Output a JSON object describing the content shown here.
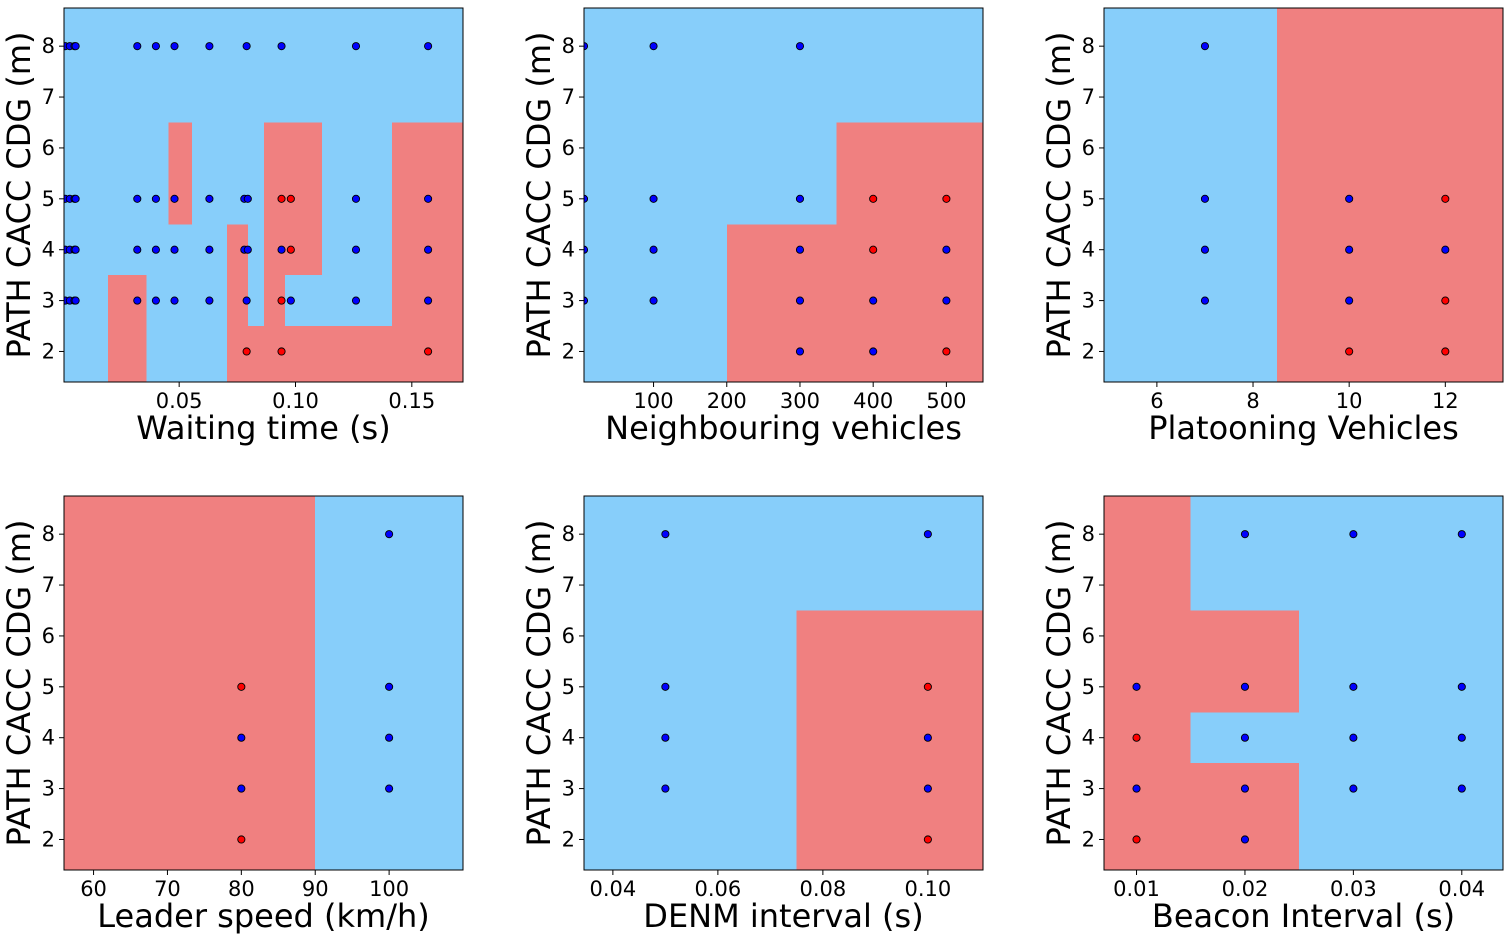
{
  "colors": {
    "blue_region": "#87CEFA",
    "red_region": "#F08080",
    "blue_point": "#0000FF",
    "red_point": "#FF0000",
    "point_edge": "#000000"
  },
  "chart_data": [
    {
      "type": "decision-region-scatter",
      "xlabel": "Waiting time (s)",
      "ylabel": "PATH CACC CDG (m)",
      "xlim": [
        0.0005,
        0.172
      ],
      "ylim": [
        1.4,
        8.75
      ],
      "xticks": [
        0.05,
        0.1,
        0.15
      ],
      "xtick_labels": [
        "0.05",
        "0.10",
        "0.15"
      ],
      "yticks": [
        2,
        3,
        4,
        5,
        6,
        7,
        8
      ],
      "ytick_labels": [
        "2",
        "3",
        "4",
        "5",
        "6",
        "7",
        "8"
      ],
      "background_class": "blue",
      "regions": [
        {
          "class": "red",
          "x": [
            0.0195,
            0.036
          ],
          "y": [
            1.4,
            3.5
          ]
        },
        {
          "class": "red",
          "x": [
            0.0455,
            0.0555
          ],
          "y": [
            4.5,
            6.5
          ]
        },
        {
          "class": "red",
          "x": [
            0.0705,
            0.0795
          ],
          "y": [
            1.4,
            4.5
          ]
        },
        {
          "class": "red",
          "x": [
            0.0795,
            0.0865
          ],
          "y": [
            1.4,
            2.5
          ]
        },
        {
          "class": "red",
          "x": [
            0.0865,
            0.0955
          ],
          "y": [
            1.4,
            6.5
          ]
        },
        {
          "class": "red",
          "x": [
            0.0955,
            0.1115
          ],
          "y": [
            3.5,
            6.5
          ]
        },
        {
          "class": "red",
          "x": [
            0.0955,
            0.172
          ],
          "y": [
            1.4,
            2.5
          ]
        },
        {
          "class": "red",
          "x": [
            0.1415,
            0.172
          ],
          "y": [
            2.5,
            6.5
          ]
        }
      ],
      "points": [
        {
          "x": 0.001,
          "y": 8,
          "class": "blue"
        },
        {
          "x": 0.003,
          "y": 8,
          "class": "blue"
        },
        {
          "x": 0.005,
          "y": 8,
          "class": "blue"
        },
        {
          "x": 0.0055,
          "y": 8,
          "class": "blue"
        },
        {
          "x": 0.032,
          "y": 8,
          "class": "blue"
        },
        {
          "x": 0.04,
          "y": 8,
          "class": "blue"
        },
        {
          "x": 0.048,
          "y": 8,
          "class": "blue"
        },
        {
          "x": 0.063,
          "y": 8,
          "class": "blue"
        },
        {
          "x": 0.079,
          "y": 8,
          "class": "blue"
        },
        {
          "x": 0.094,
          "y": 8,
          "class": "blue"
        },
        {
          "x": 0.126,
          "y": 8,
          "class": "blue"
        },
        {
          "x": 0.157,
          "y": 8,
          "class": "blue"
        },
        {
          "x": 0.001,
          "y": 5,
          "class": "blue"
        },
        {
          "x": 0.003,
          "y": 5,
          "class": "blue"
        },
        {
          "x": 0.005,
          "y": 5,
          "class": "blue"
        },
        {
          "x": 0.0055,
          "y": 5,
          "class": "blue"
        },
        {
          "x": 0.032,
          "y": 5,
          "class": "blue"
        },
        {
          "x": 0.04,
          "y": 5,
          "class": "blue"
        },
        {
          "x": 0.048,
          "y": 5,
          "class": "blue"
        },
        {
          "x": 0.063,
          "y": 5,
          "class": "blue"
        },
        {
          "x": 0.078,
          "y": 5,
          "class": "blue"
        },
        {
          "x": 0.0795,
          "y": 5,
          "class": "blue"
        },
        {
          "x": 0.094,
          "y": 5,
          "class": "red"
        },
        {
          "x": 0.098,
          "y": 5,
          "class": "red"
        },
        {
          "x": 0.126,
          "y": 5,
          "class": "blue"
        },
        {
          "x": 0.157,
          "y": 5,
          "class": "blue"
        },
        {
          "x": 0.001,
          "y": 4,
          "class": "blue"
        },
        {
          "x": 0.003,
          "y": 4,
          "class": "blue"
        },
        {
          "x": 0.005,
          "y": 4,
          "class": "blue"
        },
        {
          "x": 0.0055,
          "y": 4,
          "class": "blue"
        },
        {
          "x": 0.032,
          "y": 4,
          "class": "blue"
        },
        {
          "x": 0.04,
          "y": 4,
          "class": "blue"
        },
        {
          "x": 0.048,
          "y": 4,
          "class": "blue"
        },
        {
          "x": 0.063,
          "y": 4,
          "class": "blue"
        },
        {
          "x": 0.078,
          "y": 4,
          "class": "blue"
        },
        {
          "x": 0.0795,
          "y": 4,
          "class": "blue"
        },
        {
          "x": 0.094,
          "y": 4,
          "class": "blue"
        },
        {
          "x": 0.098,
          "y": 4,
          "class": "red"
        },
        {
          "x": 0.126,
          "y": 4,
          "class": "blue"
        },
        {
          "x": 0.157,
          "y": 4,
          "class": "blue"
        },
        {
          "x": 0.001,
          "y": 3,
          "class": "blue"
        },
        {
          "x": 0.003,
          "y": 3,
          "class": "blue"
        },
        {
          "x": 0.005,
          "y": 3,
          "class": "blue"
        },
        {
          "x": 0.0055,
          "y": 3,
          "class": "blue"
        },
        {
          "x": 0.032,
          "y": 3,
          "class": "blue"
        },
        {
          "x": 0.04,
          "y": 3,
          "class": "blue"
        },
        {
          "x": 0.048,
          "y": 3,
          "class": "blue"
        },
        {
          "x": 0.063,
          "y": 3,
          "class": "blue"
        },
        {
          "x": 0.079,
          "y": 3,
          "class": "blue"
        },
        {
          "x": 0.094,
          "y": 3,
          "class": "red"
        },
        {
          "x": 0.098,
          "y": 3,
          "class": "blue"
        },
        {
          "x": 0.126,
          "y": 3,
          "class": "blue"
        },
        {
          "x": 0.157,
          "y": 3,
          "class": "blue"
        },
        {
          "x": 0.079,
          "y": 2,
          "class": "red"
        },
        {
          "x": 0.094,
          "y": 2,
          "class": "red"
        },
        {
          "x": 0.157,
          "y": 2,
          "class": "red"
        }
      ]
    },
    {
      "type": "decision-region-scatter",
      "xlabel": "Neighbouring vehicles",
      "ylabel": "PATH CACC CDG (m)",
      "xlim": [
        5,
        550
      ],
      "ylim": [
        1.4,
        8.75
      ],
      "xticks": [
        100,
        200,
        300,
        400,
        500
      ],
      "xtick_labels": [
        "100",
        "200",
        "300",
        "400",
        "500"
      ],
      "yticks": [
        2,
        3,
        4,
        5,
        6,
        7,
        8
      ],
      "ytick_labels": [
        "2",
        "3",
        "4",
        "5",
        "6",
        "7",
        "8"
      ],
      "background_class": "blue",
      "regions": [
        {
          "class": "red",
          "x": [
            200,
            350
          ],
          "y": [
            1.4,
            4.5
          ]
        },
        {
          "class": "red",
          "x": [
            350,
            550
          ],
          "y": [
            1.4,
            6.5
          ]
        }
      ],
      "points": [
        {
          "x": 5,
          "y": 8,
          "class": "blue"
        },
        {
          "x": 100,
          "y": 8,
          "class": "blue"
        },
        {
          "x": 300,
          "y": 8,
          "class": "blue"
        },
        {
          "x": 5,
          "y": 5,
          "class": "blue"
        },
        {
          "x": 100,
          "y": 5,
          "class": "blue"
        },
        {
          "x": 300,
          "y": 5,
          "class": "blue"
        },
        {
          "x": 400,
          "y": 5,
          "class": "red"
        },
        {
          "x": 500,
          "y": 5,
          "class": "red"
        },
        {
          "x": 5,
          "y": 4,
          "class": "blue"
        },
        {
          "x": 100,
          "y": 4,
          "class": "blue"
        },
        {
          "x": 300,
          "y": 4,
          "class": "blue"
        },
        {
          "x": 400,
          "y": 4,
          "class": "red"
        },
        {
          "x": 500,
          "y": 4,
          "class": "blue"
        },
        {
          "x": 5,
          "y": 3,
          "class": "blue"
        },
        {
          "x": 100,
          "y": 3,
          "class": "blue"
        },
        {
          "x": 300,
          "y": 3,
          "class": "blue"
        },
        {
          "x": 400,
          "y": 3,
          "class": "blue"
        },
        {
          "x": 500,
          "y": 3,
          "class": "blue"
        },
        {
          "x": 300,
          "y": 2,
          "class": "blue"
        },
        {
          "x": 400,
          "y": 2,
          "class": "blue"
        },
        {
          "x": 500,
          "y": 2,
          "class": "red"
        }
      ]
    },
    {
      "type": "decision-region-scatter",
      "xlabel": "Platooning Vehicles",
      "ylabel": "PATH CACC CDG (m)",
      "xlim": [
        4.9,
        13.2
      ],
      "ylim": [
        1.4,
        8.75
      ],
      "xticks": [
        6,
        8,
        10,
        12
      ],
      "xtick_labels": [
        "6",
        "8",
        "10",
        "12"
      ],
      "yticks": [
        2,
        3,
        4,
        5,
        6,
        7,
        8
      ],
      "ytick_labels": [
        "2",
        "3",
        "4",
        "5",
        "6",
        "7",
        "8"
      ],
      "background_class": "blue",
      "regions": [
        {
          "class": "red",
          "x": [
            8.5,
            13.2
          ],
          "y": [
            1.4,
            8.75
          ]
        }
      ],
      "points": [
        {
          "x": 7,
          "y": 8,
          "class": "blue"
        },
        {
          "x": 7,
          "y": 5,
          "class": "blue"
        },
        {
          "x": 7,
          "y": 4,
          "class": "blue"
        },
        {
          "x": 7,
          "y": 3,
          "class": "blue"
        },
        {
          "x": 10,
          "y": 5,
          "class": "blue"
        },
        {
          "x": 10,
          "y": 4,
          "class": "blue"
        },
        {
          "x": 10,
          "y": 3,
          "class": "blue"
        },
        {
          "x": 10,
          "y": 2,
          "class": "red"
        },
        {
          "x": 12,
          "y": 5,
          "class": "red"
        },
        {
          "x": 12,
          "y": 4,
          "class": "blue"
        },
        {
          "x": 12,
          "y": 3,
          "class": "red"
        },
        {
          "x": 12,
          "y": 2,
          "class": "red"
        }
      ]
    },
    {
      "type": "decision-region-scatter",
      "xlabel": "Leader speed (km/h)",
      "ylabel": "PATH CACC CDG (m)",
      "xlim": [
        56,
        110
      ],
      "ylim": [
        1.4,
        8.75
      ],
      "xticks": [
        60,
        70,
        80,
        90,
        100
      ],
      "xtick_labels": [
        "60",
        "70",
        "80",
        "90",
        "100"
      ],
      "yticks": [
        2,
        3,
        4,
        5,
        6,
        7,
        8
      ],
      "ytick_labels": [
        "2",
        "3",
        "4",
        "5",
        "6",
        "7",
        "8"
      ],
      "background_class": "blue",
      "regions": [
        {
          "class": "red",
          "x": [
            56,
            90
          ],
          "y": [
            1.4,
            8.75
          ]
        }
      ],
      "points": [
        {
          "x": 80,
          "y": 5,
          "class": "red"
        },
        {
          "x": 80,
          "y": 4,
          "class": "blue"
        },
        {
          "x": 80,
          "y": 3,
          "class": "blue"
        },
        {
          "x": 80,
          "y": 2,
          "class": "red"
        },
        {
          "x": 100,
          "y": 8,
          "class": "blue"
        },
        {
          "x": 100,
          "y": 5,
          "class": "blue"
        },
        {
          "x": 100,
          "y": 4,
          "class": "blue"
        },
        {
          "x": 100,
          "y": 3,
          "class": "blue"
        }
      ]
    },
    {
      "type": "decision-region-scatter",
      "xlabel": "DENM interval (s)",
      "ylabel": "PATH CACC CDG (m)",
      "xlim": [
        0.0345,
        0.1105
      ],
      "ylim": [
        1.4,
        8.75
      ],
      "xticks": [
        0.04,
        0.06,
        0.08,
        0.1
      ],
      "xtick_labels": [
        "0.04",
        "0.06",
        "0.08",
        "0.10"
      ],
      "yticks": [
        2,
        3,
        4,
        5,
        6,
        7,
        8
      ],
      "ytick_labels": [
        "2",
        "3",
        "4",
        "5",
        "6",
        "7",
        "8"
      ],
      "background_class": "blue",
      "regions": [
        {
          "class": "red",
          "x": [
            0.075,
            0.1105
          ],
          "y": [
            1.4,
            6.5
          ]
        }
      ],
      "points": [
        {
          "x": 0.05,
          "y": 8,
          "class": "blue"
        },
        {
          "x": 0.05,
          "y": 5,
          "class": "blue"
        },
        {
          "x": 0.05,
          "y": 4,
          "class": "blue"
        },
        {
          "x": 0.05,
          "y": 3,
          "class": "blue"
        },
        {
          "x": 0.1,
          "y": 8,
          "class": "blue"
        },
        {
          "x": 0.1,
          "y": 5,
          "class": "red"
        },
        {
          "x": 0.1,
          "y": 4,
          "class": "blue"
        },
        {
          "x": 0.1,
          "y": 3,
          "class": "blue"
        },
        {
          "x": 0.1,
          "y": 2,
          "class": "red"
        }
      ]
    },
    {
      "type": "decision-region-scatter",
      "xlabel": "Beacon Interval (s)",
      "ylabel": "PATH CACC CDG (m)",
      "xlim": [
        0.007,
        0.0438
      ],
      "ylim": [
        1.4,
        8.75
      ],
      "xticks": [
        0.01,
        0.02,
        0.03,
        0.04
      ],
      "xtick_labels": [
        "0.01",
        "0.02",
        "0.03",
        "0.04"
      ],
      "yticks": [
        2,
        3,
        4,
        5,
        6,
        7,
        8
      ],
      "ytick_labels": [
        "2",
        "3",
        "4",
        "5",
        "6",
        "7",
        "8"
      ],
      "background_class": "blue",
      "regions": [
        {
          "class": "red",
          "x": [
            0.007,
            0.015
          ],
          "y": [
            1.4,
            8.75
          ]
        },
        {
          "class": "red",
          "x": [
            0.015,
            0.025
          ],
          "y": [
            4.5,
            6.5
          ]
        },
        {
          "class": "red",
          "x": [
            0.015,
            0.025
          ],
          "y": [
            1.4,
            3.5
          ]
        }
      ],
      "points": [
        {
          "x": 0.01,
          "y": 5,
          "class": "blue"
        },
        {
          "x": 0.01,
          "y": 4,
          "class": "red"
        },
        {
          "x": 0.01,
          "y": 3,
          "class": "blue"
        },
        {
          "x": 0.01,
          "y": 2,
          "class": "red"
        },
        {
          "x": 0.02,
          "y": 8,
          "class": "blue"
        },
        {
          "x": 0.02,
          "y": 5,
          "class": "blue"
        },
        {
          "x": 0.02,
          "y": 4,
          "class": "blue"
        },
        {
          "x": 0.02,
          "y": 3,
          "class": "blue"
        },
        {
          "x": 0.02,
          "y": 2,
          "class": "blue"
        },
        {
          "x": 0.03,
          "y": 8,
          "class": "blue"
        },
        {
          "x": 0.03,
          "y": 5,
          "class": "blue"
        },
        {
          "x": 0.03,
          "y": 4,
          "class": "blue"
        },
        {
          "x": 0.03,
          "y": 3,
          "class": "blue"
        },
        {
          "x": 0.04,
          "y": 8,
          "class": "blue"
        },
        {
          "x": 0.04,
          "y": 5,
          "class": "blue"
        },
        {
          "x": 0.04,
          "y": 4,
          "class": "blue"
        },
        {
          "x": 0.04,
          "y": 3,
          "class": "blue"
        }
      ]
    }
  ]
}
